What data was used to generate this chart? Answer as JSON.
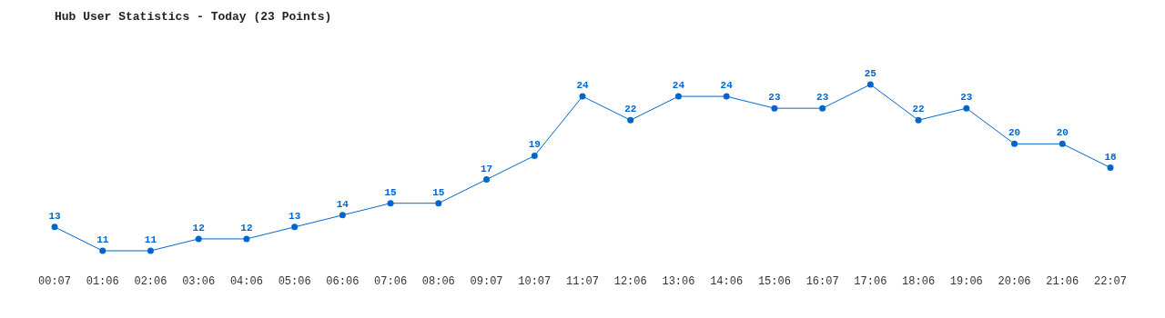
{
  "chart_data": {
    "type": "line",
    "title": "Hub User Statistics - Today (23 Points)",
    "categories": [
      "00:07",
      "01:06",
      "02:06",
      "03:06",
      "04:06",
      "05:06",
      "06:06",
      "07:06",
      "08:06",
      "09:07",
      "10:07",
      "11:07",
      "12:06",
      "13:06",
      "14:06",
      "15:06",
      "16:07",
      "17:06",
      "18:06",
      "19:06",
      "20:06",
      "21:06",
      "22:07"
    ],
    "values": [
      13,
      11,
      11,
      12,
      12,
      13,
      14,
      15,
      15,
      17,
      19,
      24,
      22,
      24,
      24,
      23,
      23,
      25,
      22,
      23,
      20,
      20,
      18
    ],
    "color": "#0066cc",
    "data_labels": true,
    "marker": "circle",
    "line_style": "solid"
  }
}
